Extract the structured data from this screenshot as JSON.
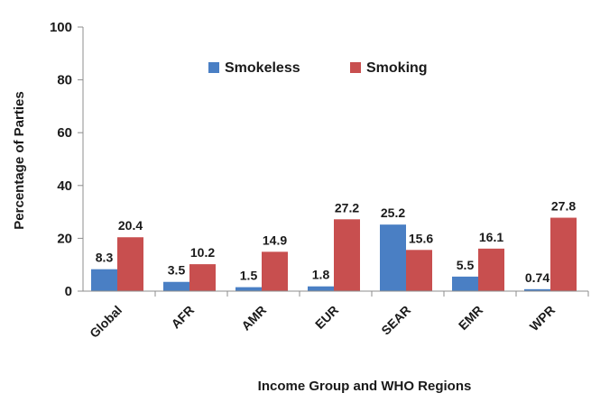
{
  "chart_data": {
    "type": "bar",
    "title": "",
    "xlabel": "Income Group and WHO Regions",
    "ylabel": "Percentage of Parties",
    "ylim": [
      0,
      100
    ],
    "yticks": [
      0,
      20,
      40,
      60,
      80,
      100
    ],
    "grid": false,
    "legend_position": "top-center",
    "categories": [
      "Global",
      "AFR",
      "AMR",
      "EUR",
      "SEAR",
      "EMR",
      "WPR"
    ],
    "series": [
      {
        "name": "Smokeless",
        "color": "#4a7fc4",
        "values": [
          8.3,
          3.5,
          1.5,
          1.8,
          25.2,
          5.5,
          0.74
        ],
        "labels": [
          "8.3",
          "3.5",
          "1.5",
          "1.8",
          "25.2",
          "5.5",
          "0.74"
        ]
      },
      {
        "name": "Smoking",
        "color": "#c84f4f",
        "values": [
          20.4,
          10.2,
          14.9,
          27.2,
          15.6,
          16.1,
          27.8
        ],
        "labels": [
          "20.4",
          "10.2",
          "14.9",
          "27.2",
          "15.6",
          "16.1",
          "27.8"
        ]
      }
    ]
  }
}
